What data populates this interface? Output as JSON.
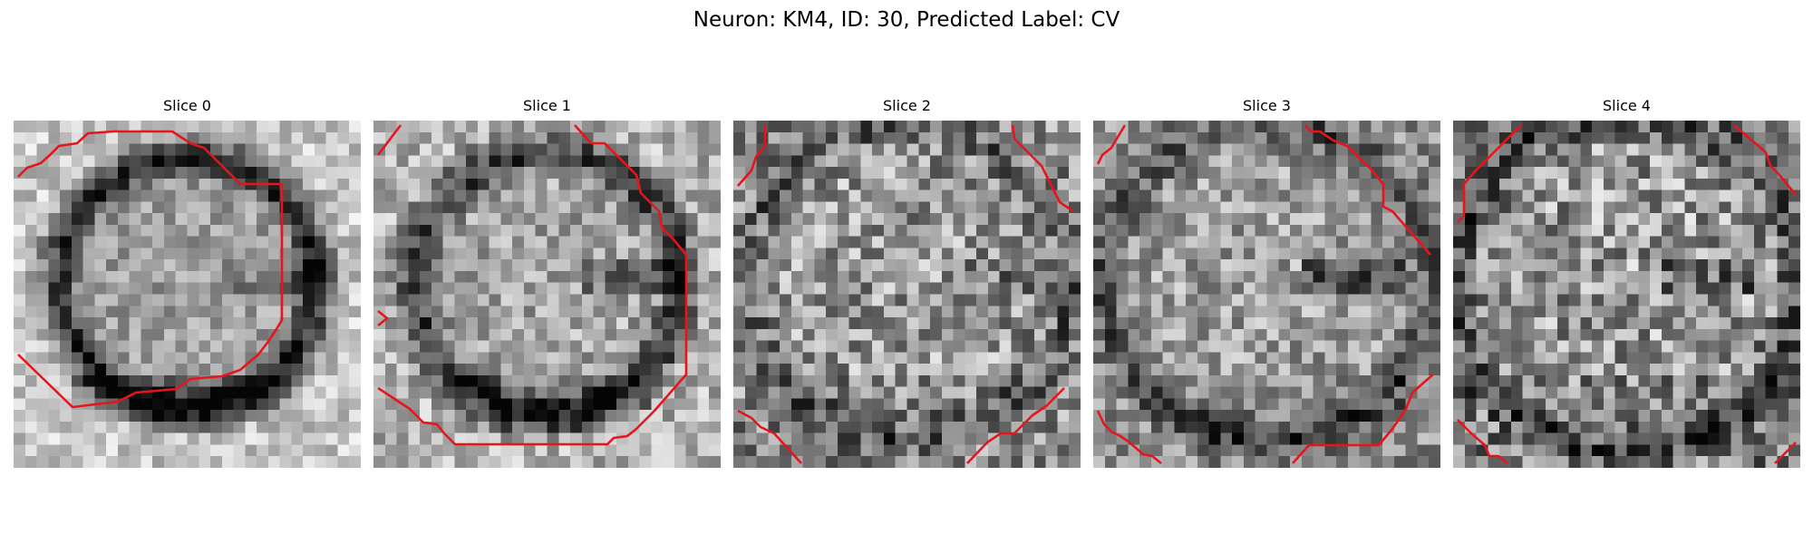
{
  "figure": {
    "title": "Neuron: KM4, ID: 30, Predicted Label: CV",
    "contour_color": "#e8141c",
    "panels": [
      {
        "title": "Slice 0"
      },
      {
        "title": "Slice 1"
      },
      {
        "title": "Slice 2"
      },
      {
        "title": "Slice 3"
      },
      {
        "title": "Slice 4"
      }
    ]
  }
}
